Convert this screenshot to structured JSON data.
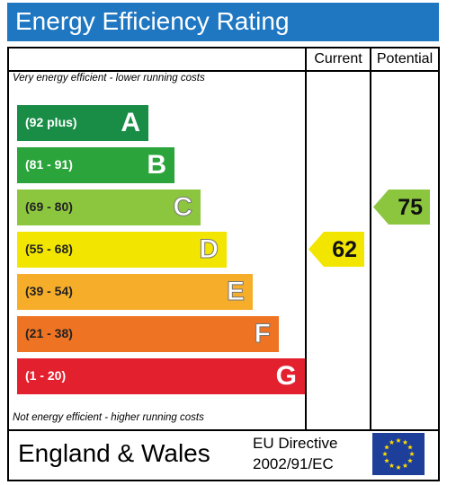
{
  "title": "Energy Efficiency Rating",
  "columns": {
    "current": "Current",
    "potential": "Potential"
  },
  "notes": {
    "top": "Very energy efficient - lower running costs",
    "bottom": "Not energy efficient - higher running costs"
  },
  "footer": {
    "region": "England & Wales",
    "directive_line1": "EU Directive",
    "directive_line2": "2002/91/EC"
  },
  "chart_data": {
    "type": "bar",
    "title": "Energy Efficiency Rating",
    "bands": [
      {
        "letter": "A",
        "range": "(92 plus)",
        "color": "#198c46"
      },
      {
        "letter": "B",
        "range": "(81 - 91)",
        "color": "#2aa43b"
      },
      {
        "letter": "C",
        "range": "(69 - 80)",
        "color": "#8cc63f"
      },
      {
        "letter": "D",
        "range": "(55 - 68)",
        "color": "#f2e600"
      },
      {
        "letter": "E",
        "range": "(39 - 54)",
        "color": "#f6ad2a"
      },
      {
        "letter": "F",
        "range": "(21 - 38)",
        "color": "#ee7322"
      },
      {
        "letter": "G",
        "range": "(1 - 20)",
        "color": "#e2202e"
      }
    ],
    "current": {
      "value": 62,
      "band": "D",
      "color": "#f2e600"
    },
    "potential": {
      "value": 75,
      "band": "C",
      "color": "#8cc63f"
    }
  }
}
